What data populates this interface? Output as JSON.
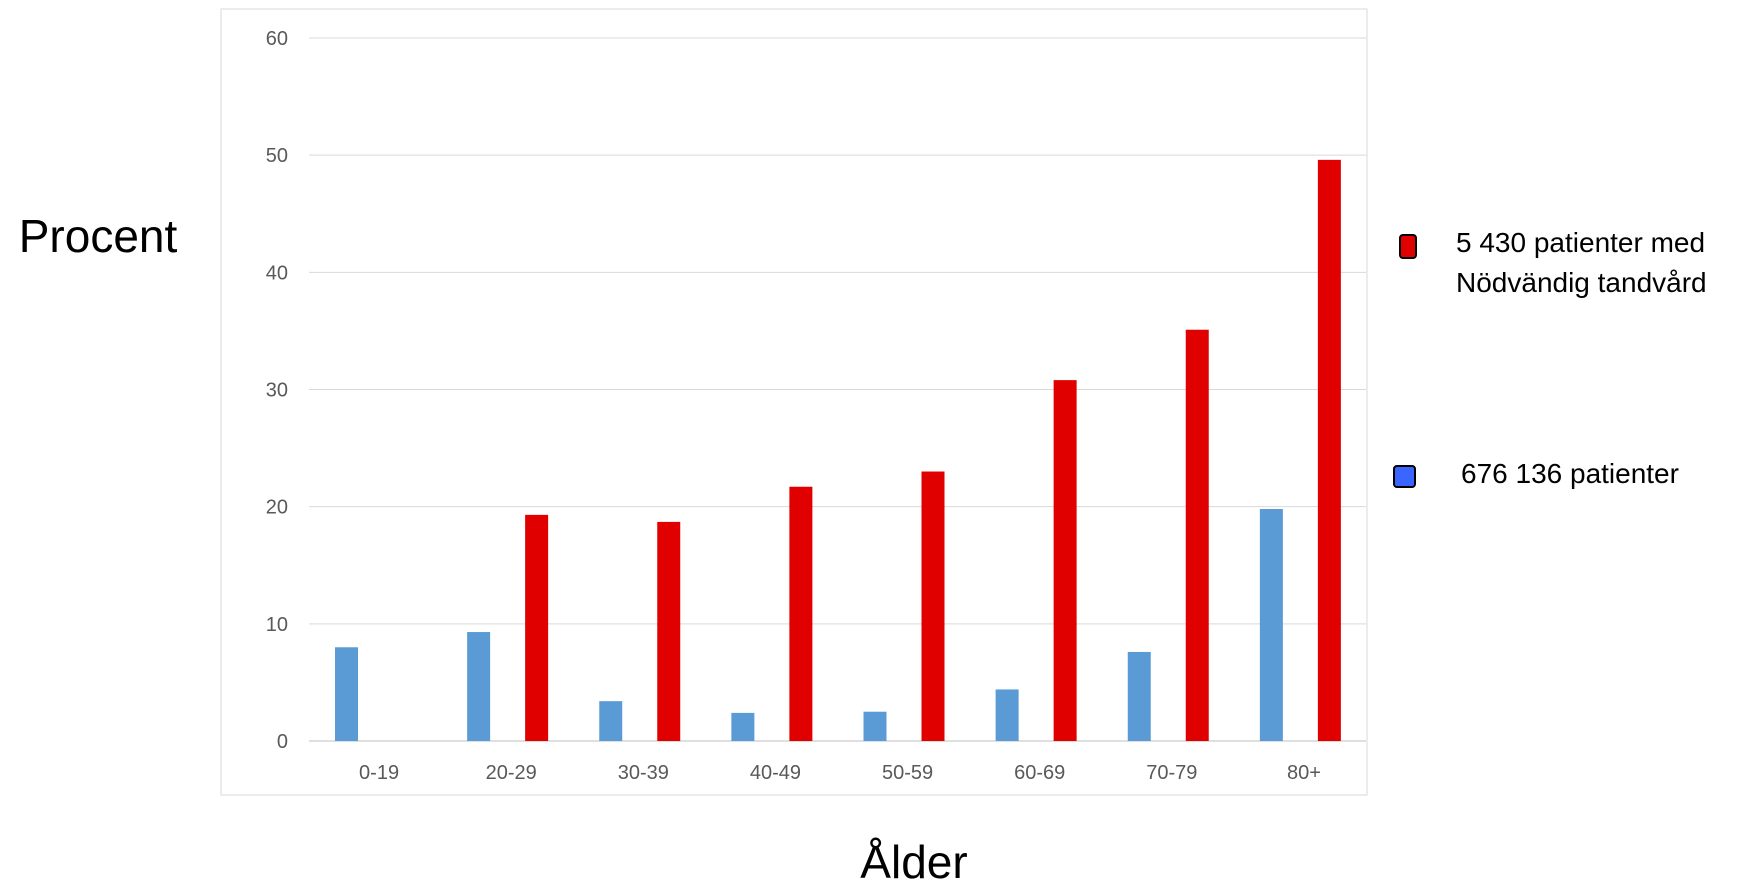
{
  "chart_data": {
    "type": "bar",
    "title": "",
    "xlabel": "Ålder",
    "ylabel": "Procent",
    "categories": [
      "0-19",
      "20-29",
      "30-39",
      "40-49",
      "50-59",
      "60-69",
      "70-79",
      "80+"
    ],
    "ylim": [
      0,
      60
    ],
    "yticks": [
      0,
      10,
      20,
      30,
      40,
      50,
      60
    ],
    "grid": true,
    "legend_position": "right",
    "series": [
      {
        "name": "676 136 patienter",
        "color": "#5b9bd5",
        "legend_color": "#3a66ff",
        "values": [
          8.0,
          9.3,
          3.4,
          2.4,
          2.5,
          4.4,
          7.6,
          19.8
        ]
      },
      {
        "name": "5 430 patienter med Nödvändig tandvård",
        "color": "#e00000",
        "legend_color": "#e00000",
        "name_lines": [
          "5 430 patienter med",
          "Nödvändig tandvård"
        ],
        "values": [
          null,
          19.3,
          18.7,
          21.7,
          23.0,
          30.8,
          35.1,
          49.6
        ]
      }
    ]
  }
}
